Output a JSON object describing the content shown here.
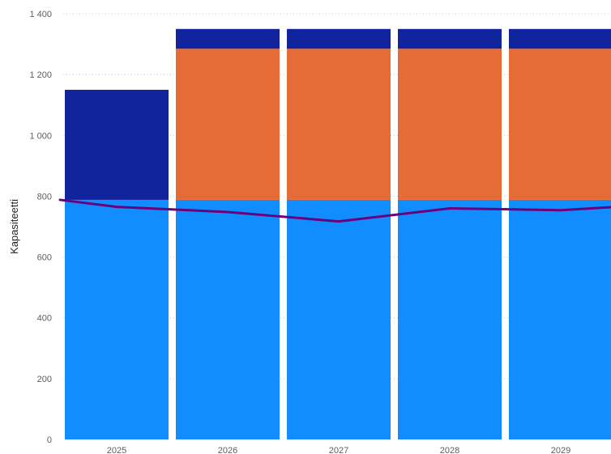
{
  "chart_data": {
    "type": "bar",
    "stacked": true,
    "categories": [
      "2025",
      "2026",
      "2027",
      "2028",
      "2029"
    ],
    "series": [
      {
        "color": "#118dff",
        "values": [
          788,
          788,
          788,
          788,
          788
        ]
      },
      {
        "color": "#e66c37",
        "values": [
          0,
          497,
          497,
          497,
          497
        ]
      },
      {
        "color": "#12239e",
        "values": [
          362,
          65,
          65,
          65,
          65
        ]
      }
    ],
    "line": {
      "color": "#6b007b",
      "values": [
        765,
        748,
        717,
        760,
        754
      ],
      "start_value": 788,
      "end_value": 764
    },
    "title": "",
    "xlabel": "",
    "ylabel": "Kapasiteetti",
    "ylim": [
      0,
      1400
    ],
    "yticks": [
      0,
      200,
      400,
      600,
      800,
      1000,
      1200,
      1400
    ],
    "ytick_labels": [
      "0",
      "200",
      "400",
      "600",
      "800",
      "1 000",
      "1 200",
      "1 400"
    ],
    "grid": true,
    "legend": "none"
  }
}
